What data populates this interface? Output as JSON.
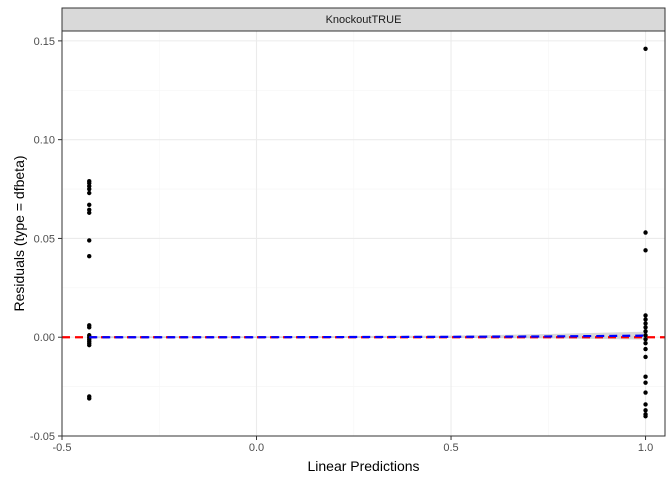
{
  "chart_data": {
    "type": "scatter",
    "facet_label": "KnockoutTRUE",
    "xlabel": "Linear Predictions",
    "ylabel": "Residuals (type = dfbeta)",
    "xlim": [
      -0.5,
      1.05
    ],
    "ylim": [
      -0.05,
      0.155
    ],
    "x_ticks": [
      -0.5,
      0.0,
      0.5,
      1.0
    ],
    "x_tick_labels": [
      "-0.5",
      "0.0",
      "0.5",
      "1.0"
    ],
    "x_minor_ticks": [
      -0.25,
      0.25,
      0.75
    ],
    "y_ticks": [
      -0.05,
      0.0,
      0.05,
      0.1,
      0.15
    ],
    "y_tick_labels": [
      "-0.05",
      "0.00",
      "0.05",
      "0.10",
      "0.15"
    ],
    "y_minor_ticks": [
      -0.025,
      0.025,
      0.075,
      0.125
    ],
    "grid": true,
    "points": [
      {
        "x": -0.43,
        "y": 0.079
      },
      {
        "x": -0.43,
        "y": 0.078
      },
      {
        "x": -0.43,
        "y": 0.0765
      },
      {
        "x": -0.43,
        "y": 0.075
      },
      {
        "x": -0.43,
        "y": 0.073
      },
      {
        "x": -0.43,
        "y": 0.067
      },
      {
        "x": -0.43,
        "y": 0.0645
      },
      {
        "x": -0.43,
        "y": 0.063
      },
      {
        "x": -0.43,
        "y": 0.049
      },
      {
        "x": -0.43,
        "y": 0.041
      },
      {
        "x": -0.43,
        "y": 0.006
      },
      {
        "x": -0.43,
        "y": 0.005
      },
      {
        "x": -0.43,
        "y": 0.001
      },
      {
        "x": -0.43,
        "y": 0.0
      },
      {
        "x": -0.43,
        "y": -0.001
      },
      {
        "x": -0.43,
        "y": -0.002
      },
      {
        "x": -0.43,
        "y": -0.003
      },
      {
        "x": -0.43,
        "y": -0.004
      },
      {
        "x": -0.43,
        "y": -0.03
      },
      {
        "x": -0.43,
        "y": -0.031
      },
      {
        "x": 1.0,
        "y": 0.146
      },
      {
        "x": 1.0,
        "y": 0.053
      },
      {
        "x": 1.0,
        "y": 0.044
      },
      {
        "x": 1.0,
        "y": 0.011
      },
      {
        "x": 1.0,
        "y": 0.009
      },
      {
        "x": 1.0,
        "y": 0.007
      },
      {
        "x": 1.0,
        "y": 0.005
      },
      {
        "x": 1.0,
        "y": 0.003
      },
      {
        "x": 1.0,
        "y": 0.001
      },
      {
        "x": 1.0,
        "y": -0.001
      },
      {
        "x": 1.0,
        "y": -0.003
      },
      {
        "x": 1.0,
        "y": -0.006
      },
      {
        "x": 1.0,
        "y": -0.01
      },
      {
        "x": 1.0,
        "y": -0.02
      },
      {
        "x": 1.0,
        "y": -0.023
      },
      {
        "x": 1.0,
        "y": -0.028
      },
      {
        "x": 1.0,
        "y": -0.034
      },
      {
        "x": 1.0,
        "y": -0.037
      },
      {
        "x": 1.0,
        "y": -0.039
      },
      {
        "x": 1.0,
        "y": -0.04
      }
    ],
    "reference_line": {
      "y": 0.0,
      "color": "#ff0000",
      "style": "dashed"
    },
    "smooth_line": {
      "color": "#0000ff",
      "style": "dashed",
      "band_color": "#bebebe",
      "points": [
        {
          "x": -0.43,
          "y": 0.0,
          "lo": -0.0005,
          "hi": 0.0005
        },
        {
          "x": 0.0,
          "y": 0.0,
          "lo": -0.0004,
          "hi": 0.0004
        },
        {
          "x": 0.5,
          "y": 0.0002,
          "lo": -0.0004,
          "hi": 0.0008
        },
        {
          "x": 0.75,
          "y": 0.0004,
          "lo": -0.0006,
          "hi": 0.0016
        },
        {
          "x": 1.0,
          "y": 0.0008,
          "lo": -0.0012,
          "hi": 0.0028
        }
      ]
    },
    "colors": {
      "point": "#000000",
      "strip_fill": "#d9d9d9",
      "panel_border": "#333333",
      "grid_major": "#ebebeb",
      "grid_minor": "#f5f5f5"
    }
  }
}
